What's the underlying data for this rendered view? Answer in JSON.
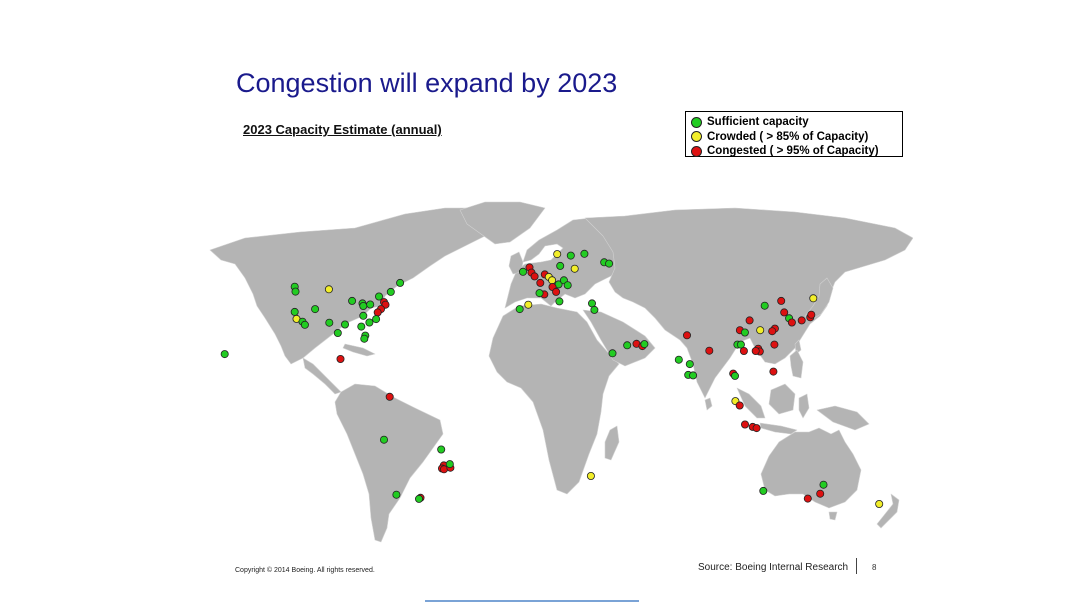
{
  "slide": {
    "title": "Congestion will expand by 2023",
    "subtitle": "2023 Capacity Estimate (annual)",
    "copyright": "Copyright © 2014 Boeing. All rights reserved.",
    "source": "Source: Boeing Internal Research",
    "page_number": "8"
  },
  "legend": {
    "items": [
      {
        "key": "sufficient",
        "label": "Sufficient capacity",
        "color": "#22cc22"
      },
      {
        "key": "crowded",
        "label": "Crowded ( > 85% of Capacity)",
        "color": "#f2ee2a"
      },
      {
        "key": "congested",
        "label": "Congested ( > 95% of Capacity)",
        "color": "#dd1111"
      }
    ]
  },
  "colors": {
    "land": "#b4b4b4",
    "sufficient": "#22cc22",
    "crowded": "#f2ee2a",
    "congested": "#dd1111"
  },
  "airports": [
    {
      "lon": -122.4,
      "lat": 47.5,
      "status": "sufficient"
    },
    {
      "lon": -122.0,
      "lat": 45.6,
      "status": "sufficient"
    },
    {
      "lon": -105.0,
      "lat": 46.5,
      "status": "crowded"
    },
    {
      "lon": -122.4,
      "lat": 37.7,
      "status": "sufficient"
    },
    {
      "lon": -121.5,
      "lat": 35.0,
      "status": "crowded"
    },
    {
      "lon": -118.4,
      "lat": 33.9,
      "status": "sufficient"
    },
    {
      "lon": -117.2,
      "lat": 32.7,
      "status": "sufficient"
    },
    {
      "lon": -112.0,
      "lat": 38.8,
      "status": "sufficient"
    },
    {
      "lon": -104.8,
      "lat": 33.5,
      "status": "sufficient"
    },
    {
      "lon": -96.8,
      "lat": 32.8,
      "status": "sufficient"
    },
    {
      "lon": -100.5,
      "lat": 29.5,
      "status": "sufficient"
    },
    {
      "lon": -93.2,
      "lat": 42.0,
      "status": "sufficient"
    },
    {
      "lon": -87.9,
      "lat": 41.0,
      "status": "sufficient"
    },
    {
      "lon": -87.5,
      "lat": 40.0,
      "status": "sufficient"
    },
    {
      "lon": -84.0,
      "lat": 40.6,
      "status": "sufficient"
    },
    {
      "lon": -79.5,
      "lat": 43.7,
      "status": "sufficient"
    },
    {
      "lon": -73.5,
      "lat": 45.5,
      "status": "sufficient"
    },
    {
      "lon": -68.8,
      "lat": 49.0,
      "status": "sufficient"
    },
    {
      "lon": -77.0,
      "lat": 41.5,
      "status": "congested"
    },
    {
      "lon": -76.2,
      "lat": 40.5,
      "status": "congested"
    },
    {
      "lon": -78.5,
      "lat": 38.8,
      "status": "congested"
    },
    {
      "lon": -80.2,
      "lat": 37.5,
      "status": "congested"
    },
    {
      "lon": -84.4,
      "lat": 33.6,
      "status": "sufficient"
    },
    {
      "lon": -87.5,
      "lat": 36.2,
      "status": "sufficient"
    },
    {
      "lon": -88.5,
      "lat": 32.0,
      "status": "sufficient"
    },
    {
      "lon": -86.5,
      "lat": 28.5,
      "status": "sufficient"
    },
    {
      "lon": -87.0,
      "lat": 27.3,
      "status": "sufficient"
    },
    {
      "lon": -81.0,
      "lat": 34.9,
      "status": "sufficient"
    },
    {
      "lon": -158.0,
      "lat": 21.3,
      "status": "sufficient"
    },
    {
      "lon": -99.1,
      "lat": 19.4,
      "status": "congested"
    },
    {
      "lon": -74.1,
      "lat": 4.7,
      "status": "congested"
    },
    {
      "lon": -77.0,
      "lat": -12.0,
      "status": "sufficient"
    },
    {
      "lon": -47.9,
      "lat": -15.8,
      "status": "sufficient"
    },
    {
      "lon": -46.6,
      "lat": -22.0,
      "status": "congested"
    },
    {
      "lon": -47.5,
      "lat": -23.2,
      "status": "congested"
    },
    {
      "lon": -46.5,
      "lat": -23.5,
      "status": "congested"
    },
    {
      "lon": -43.2,
      "lat": -22.9,
      "status": "congested"
    },
    {
      "lon": -43.5,
      "lat": -21.5,
      "status": "sufficient"
    },
    {
      "lon": -70.7,
      "lat": -33.4,
      "status": "sufficient"
    },
    {
      "lon": -58.4,
      "lat": -34.6,
      "status": "congested"
    },
    {
      "lon": -59.2,
      "lat": -35.0,
      "status": "sufficient"
    },
    {
      "lon": -6.3,
      "lat": 53.3,
      "status": "sufficient"
    },
    {
      "lon": -3.0,
      "lat": 55.0,
      "status": "congested"
    },
    {
      "lon": -2.0,
      "lat": 53.0,
      "status": "congested"
    },
    {
      "lon": -0.4,
      "lat": 51.5,
      "status": "congested"
    },
    {
      "lon": 2.5,
      "lat": 49.0,
      "status": "congested"
    },
    {
      "lon": 4.8,
      "lat": 52.3,
      "status": "congested"
    },
    {
      "lon": 6.8,
      "lat": 51.3,
      "status": "crowded"
    },
    {
      "lon": 8.5,
      "lat": 50.0,
      "status": "crowded"
    },
    {
      "lon": 11.8,
      "lat": 48.4,
      "status": "sufficient"
    },
    {
      "lon": 12.6,
      "lat": 55.6,
      "status": "sufficient"
    },
    {
      "lon": 11.1,
      "lat": 60.2,
      "status": "crowded"
    },
    {
      "lon": 18.0,
      "lat": 59.6,
      "status": "sufficient"
    },
    {
      "lon": 24.9,
      "lat": 60.3,
      "status": "sufficient"
    },
    {
      "lon": 8.7,
      "lat": 47.4,
      "status": "congested"
    },
    {
      "lon": 10.5,
      "lat": 45.5,
      "status": "congested"
    },
    {
      "lon": 12.2,
      "lat": 41.8,
      "status": "sufficient"
    },
    {
      "lon": 14.5,
      "lat": 50.0,
      "status": "sufficient"
    },
    {
      "lon": 16.4,
      "lat": 48.1,
      "status": "sufficient"
    },
    {
      "lon": 20.0,
      "lat": 54.5,
      "status": "crowded"
    },
    {
      "lon": 4.5,
      "lat": 44.5,
      "status": "congested"
    },
    {
      "lon": -3.6,
      "lat": 40.5,
      "status": "crowded"
    },
    {
      "lon": -8.0,
      "lat": 38.8,
      "status": "sufficient"
    },
    {
      "lon": 2.1,
      "lat": 45.0,
      "status": "sufficient"
    },
    {
      "lon": 35.0,
      "lat": 57.0,
      "status": "sufficient"
    },
    {
      "lon": 37.5,
      "lat": 56.5,
      "status": "sufficient"
    },
    {
      "lon": 28.8,
      "lat": 41.0,
      "status": "sufficient"
    },
    {
      "lon": 30.0,
      "lat": 38.5,
      "status": "sufficient"
    },
    {
      "lon": 46.7,
      "lat": 24.7,
      "status": "sufficient"
    },
    {
      "lon": 39.2,
      "lat": 21.6,
      "status": "sufficient"
    },
    {
      "lon": 51.4,
      "lat": 25.3,
      "status": "congested"
    },
    {
      "lon": 54.4,
      "lat": 24.4,
      "status": "congested"
    },
    {
      "lon": 55.4,
      "lat": 25.2,
      "status": "sufficient"
    },
    {
      "lon": 72.9,
      "lat": 19.1,
      "status": "sufficient"
    },
    {
      "lon": 77.1,
      "lat": 28.6,
      "status": "congested"
    },
    {
      "lon": 77.7,
      "lat": 13.2,
      "status": "sufficient"
    },
    {
      "lon": 80.2,
      "lat": 13.0,
      "status": "sufficient"
    },
    {
      "lon": 78.5,
      "lat": 17.4,
      "status": "sufficient"
    },
    {
      "lon": 88.4,
      "lat": 22.6,
      "status": "congested"
    },
    {
      "lon": 116.6,
      "lat": 40.1,
      "status": "sufficient"
    },
    {
      "lon": 104.0,
      "lat": 30.6,
      "status": "congested"
    },
    {
      "lon": 106.5,
      "lat": 29.7,
      "status": "sufficient"
    },
    {
      "lon": 108.9,
      "lat": 34.4,
      "status": "congested"
    },
    {
      "lon": 114.3,
      "lat": 30.6,
      "status": "crowded"
    },
    {
      "lon": 121.8,
      "lat": 31.2,
      "status": "congested"
    },
    {
      "lon": 120.4,
      "lat": 30.2,
      "status": "congested"
    },
    {
      "lon": 113.3,
      "lat": 23.4,
      "status": "congested"
    },
    {
      "lon": 114.1,
      "lat": 22.3,
      "status": "congested"
    },
    {
      "lon": 112.0,
      "lat": 22.5,
      "status": "congested"
    },
    {
      "lon": 102.7,
      "lat": 25.0,
      "status": "sufficient"
    },
    {
      "lon": 104.5,
      "lat": 25.0,
      "status": "sufficient"
    },
    {
      "lon": 106.0,
      "lat": 22.5,
      "status": "congested"
    },
    {
      "lon": 121.5,
      "lat": 25.0,
      "status": "congested"
    },
    {
      "lon": 125.0,
      "lat": 42.0,
      "status": "congested"
    },
    {
      "lon": 126.5,
      "lat": 37.5,
      "status": "congested"
    },
    {
      "lon": 129.0,
      "lat": 35.2,
      "status": "sufficient"
    },
    {
      "lon": 130.4,
      "lat": 33.6,
      "status": "congested"
    },
    {
      "lon": 135.4,
      "lat": 34.4,
      "status": "congested"
    },
    {
      "lon": 139.8,
      "lat": 35.6,
      "status": "congested"
    },
    {
      "lon": 140.3,
      "lat": 36.6,
      "status": "congested"
    },
    {
      "lon": 141.3,
      "lat": 43.0,
      "status": "crowded"
    },
    {
      "lon": 121.0,
      "lat": 14.5,
      "status": "congested"
    },
    {
      "lon": 100.6,
      "lat": 13.7,
      "status": "congested"
    },
    {
      "lon": 101.5,
      "lat": 12.8,
      "status": "sufficient"
    },
    {
      "lon": 101.7,
      "lat": 3.0,
      "status": "crowded"
    },
    {
      "lon": 103.9,
      "lat": 1.3,
      "status": "congested"
    },
    {
      "lon": 106.6,
      "lat": -6.1,
      "status": "congested"
    },
    {
      "lon": 110.5,
      "lat": -7.0,
      "status": "congested"
    },
    {
      "lon": 112.5,
      "lat": -7.5,
      "status": "congested"
    },
    {
      "lon": 115.9,
      "lat": -31.9,
      "status": "sufficient"
    },
    {
      "lon": 138.5,
      "lat": -34.9,
      "status": "congested"
    },
    {
      "lon": 144.8,
      "lat": -33.0,
      "status": "congested"
    },
    {
      "lon": 146.5,
      "lat": -29.5,
      "status": "sufficient"
    },
    {
      "lon": 174.8,
      "lat": -37.0,
      "status": "crowded"
    },
    {
      "lon": 28.2,
      "lat": -26.1,
      "status": "crowded"
    }
  ]
}
